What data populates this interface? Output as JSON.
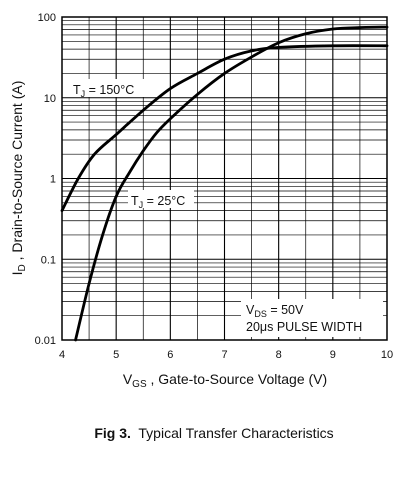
{
  "chart_data": {
    "type": "line",
    "x_scale": "linear",
    "y_scale": "log",
    "xlim": [
      4,
      10
    ],
    "ylim": [
      0.01,
      100
    ],
    "x_ticks": [
      "4",
      "5",
      "6",
      "7",
      "8",
      "9",
      "10"
    ],
    "y_ticks": [
      "0.01",
      "0.1",
      "1",
      "10",
      "100"
    ],
    "grid": true,
    "xlabel": {
      "main": "V",
      "sub": "GS",
      "rest": " , Gate-to-Source Voltage (V)"
    },
    "ylabel": {
      "main": "I",
      "sub": "D",
      "rest": " , Drain-to-Source Current (A)"
    },
    "series": [
      {
        "label": {
          "main": "T",
          "sub": "J",
          "rest": " = 150°C"
        },
        "points": [
          [
            4.0,
            0.4
          ],
          [
            4.3,
            1.0
          ],
          [
            4.6,
            2.0
          ],
          [
            5.0,
            3.5
          ],
          [
            5.5,
            7.0
          ],
          [
            6.0,
            13.0
          ],
          [
            6.5,
            20.0
          ],
          [
            7.0,
            30.0
          ],
          [
            7.5,
            38.0
          ],
          [
            8.0,
            42.0
          ],
          [
            9.0,
            44.0
          ],
          [
            10.0,
            44.0
          ]
        ]
      },
      {
        "label": {
          "main": "T",
          "sub": "J",
          "rest": " = 25°C"
        },
        "points": [
          [
            4.25,
            0.01
          ],
          [
            4.5,
            0.05
          ],
          [
            4.75,
            0.2
          ],
          [
            5.0,
            0.6
          ],
          [
            5.25,
            1.2
          ],
          [
            5.5,
            2.2
          ],
          [
            5.75,
            3.7
          ],
          [
            6.0,
            5.5
          ],
          [
            6.5,
            11.0
          ],
          [
            7.0,
            20.0
          ],
          [
            7.5,
            32.0
          ],
          [
            8.0,
            48.0
          ],
          [
            8.5,
            62.0
          ],
          [
            9.0,
            71.0
          ],
          [
            9.5,
            74.0
          ],
          [
            10.0,
            75.0
          ]
        ]
      }
    ],
    "annotations": [
      {
        "main": "V",
        "sub": "DS",
        "rest": " = 50V"
      },
      {
        "text": "20μs PULSE WIDTH"
      }
    ],
    "caption": {
      "bold": "Fig 3.",
      "rest": "  Typical Transfer Characteristics"
    },
    "colors": {
      "line": "#000000",
      "grid": "#000000",
      "background": "#ffffff"
    }
  }
}
